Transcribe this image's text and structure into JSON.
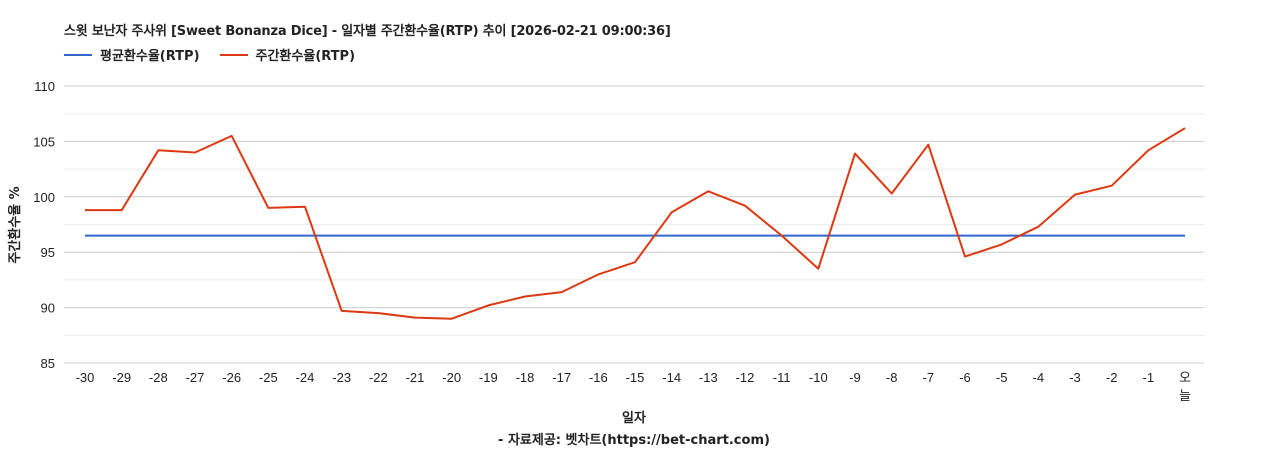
{
  "title": "스윗 보난자 주사위 [Sweet Bonanza Dice] - 일자별 주간환수율(RTP) 추이 [2026-02-21 09:00:36]",
  "legend": [
    {
      "label": "평균환수율(RTP)",
      "color": "#3366cc"
    },
    {
      "label": "주간환수율(RTP)",
      "color": "#dc3912"
    }
  ],
  "axis": {
    "x_label": "일자",
    "y_label": "주간환수율 %"
  },
  "source": "- 자료제공: 벳차트(https://bet-chart.com)",
  "chart_data": {
    "type": "line",
    "title": "스윗 보난자 주사위 [Sweet Bonanza Dice] - 일자별 주간환수율(RTP) 추이 [2026-02-21 09:00:36]",
    "xlabel": "일자",
    "ylabel": "주간환수율 %",
    "ylim": [
      85,
      110
    ],
    "yticks": [
      85,
      90,
      95,
      100,
      105,
      110
    ],
    "grid": true,
    "legend_position": "top",
    "categories": [
      "-30",
      "-29",
      "-28",
      "-27",
      "-26",
      "-25",
      "-24",
      "-23",
      "-22",
      "-21",
      "-20",
      "-19",
      "-18",
      "-17",
      "-16",
      "-15",
      "-14",
      "-13",
      "-12",
      "-11",
      "-10",
      "-9",
      "-8",
      "-7",
      "-6",
      "-5",
      "-4",
      "-3",
      "-2",
      "-1",
      "오늘"
    ],
    "series": [
      {
        "name": "평균환수율(RTP)",
        "color": "#3366cc",
        "values": [
          96.5,
          96.5,
          96.5,
          96.5,
          96.5,
          96.5,
          96.5,
          96.5,
          96.5,
          96.5,
          96.5,
          96.5,
          96.5,
          96.5,
          96.5,
          96.5,
          96.5,
          96.5,
          96.5,
          96.5,
          96.5,
          96.5,
          96.5,
          96.5,
          96.5,
          96.5,
          96.5,
          96.5,
          96.5,
          96.5,
          96.5
        ]
      },
      {
        "name": "주간환수율(RTP)",
        "color": "#dc3912",
        "values": [
          98.8,
          98.8,
          104.2,
          104.0,
          105.5,
          99.0,
          99.1,
          89.7,
          89.5,
          89.1,
          89.0,
          90.2,
          91.0,
          91.4,
          93.0,
          94.1,
          98.6,
          100.5,
          99.2,
          96.5,
          93.5,
          103.9,
          100.3,
          104.7,
          94.6,
          95.7,
          97.3,
          100.2,
          101.0,
          104.2,
          106.2
        ]
      }
    ]
  }
}
